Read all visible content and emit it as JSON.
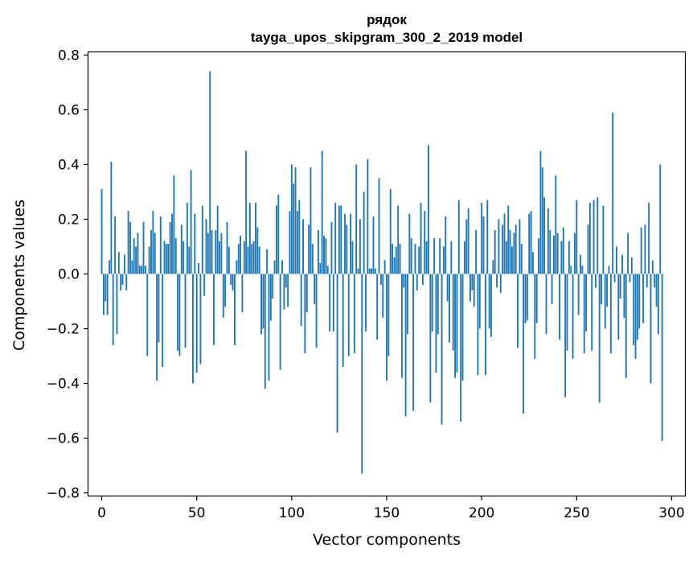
{
  "chart_data": {
    "type": "bar",
    "title_lines": [
      "рядок",
      "tayga_upos_skipgram_300_2_2019 model"
    ],
    "xlabel": "Vector components",
    "ylabel": "Components values",
    "xlim": [
      -7,
      307
    ],
    "ylim": [
      -0.81,
      0.81
    ],
    "xticks": [
      0,
      50,
      100,
      150,
      200,
      250,
      300
    ],
    "xtick_labels": [
      "0",
      "50",
      "100",
      "150",
      "200",
      "250",
      "300"
    ],
    "yticks": [
      -0.8,
      -0.6,
      -0.4,
      -0.2,
      0.0,
      0.2,
      0.4,
      0.6,
      0.8
    ],
    "ytick_labels": [
      "−0.8",
      "−0.6",
      "−0.4",
      "−0.2",
      "0.0",
      "0.2",
      "0.4",
      "0.6",
      "0.8"
    ],
    "bar_color": "#1f77b4",
    "values": [
      0.31,
      -0.15,
      -0.1,
      -0.15,
      0.05,
      0.41,
      -0.26,
      0.21,
      -0.22,
      0.08,
      -0.06,
      -0.04,
      0.07,
      -0.06,
      0.23,
      0.19,
      0.05,
      0.13,
      0.1,
      0.15,
      0.03,
      0.03,
      0.19,
      0.03,
      -0.3,
      0.1,
      0.16,
      0.23,
      0.15,
      -0.39,
      -0.25,
      0.21,
      -0.34,
      0.12,
      0.11,
      0.11,
      0.19,
      0.22,
      0.36,
      0.13,
      -0.28,
      -0.3,
      0.18,
      0.12,
      -0.27,
      0.26,
      0.1,
      0.38,
      -0.4,
      0.22,
      -0.36,
      0.04,
      -0.33,
      0.25,
      -0.08,
      0.2,
      0.15,
      0.74,
      0.16,
      -0.26,
      0.16,
      0.25,
      0.12,
      0.15,
      -0.16,
      -0.12,
      0.19,
      0.1,
      -0.04,
      -0.06,
      -0.26,
      0.05,
      0.11,
      0.14,
      -0.14,
      0.12,
      0.45,
      0.1,
      0.26,
      0.11,
      0.12,
      0.26,
      0.17,
      0.1,
      -0.22,
      -0.2,
      -0.42,
      0.09,
      -0.39,
      -0.17,
      -0.09,
      0.05,
      0.25,
      0.29,
      -0.35,
      0.05,
      -0.13,
      -0.05,
      -0.12,
      0.23,
      0.4,
      0.33,
      0.39,
      0.23,
      0.27,
      -0.19,
      0.2,
      -0.29,
      -0.14,
      0.18,
      0.39,
      0.11,
      -0.11,
      -0.27,
      0.16,
      0.04,
      0.45,
      0.14,
      0.13,
      0.03,
      -0.21,
      0.19,
      -0.21,
      0.26,
      -0.58,
      0.25,
      0.25,
      -0.34,
      0.22,
      0.18,
      -0.3,
      0.22,
      0.12,
      -0.29,
      0.4,
      0.02,
      0.2,
      -0.73,
      0.3,
      -0.21,
      0.42,
      0.02,
      0.02,
      0.21,
      0.02,
      -0.24,
      0.35,
      -0.04,
      -0.16,
      0.05,
      -0.39,
      -0.3,
      0.31,
      0.11,
      0.06,
      0.1,
      0.25,
      0.11,
      -0.38,
      -0.05,
      -0.52,
      -0.22,
      0.22,
      0.13,
      -0.5,
      0.11,
      -0.06,
      0.1,
      0.26,
      -0.04,
      0.23,
      0.12,
      0.47,
      -0.47,
      -0.21,
      0.13,
      -0.36,
      -0.22,
      0.13,
      -0.55,
      0.1,
      0.21,
      -0.1,
      -0.25,
      0.12,
      -0.28,
      -0.38,
      -0.36,
      0.27,
      -0.54,
      -0.39,
      0.12,
      0.2,
      0.24,
      -0.1,
      -0.06,
      -0.12,
      0.16,
      -0.37,
      -0.2,
      0.26,
      0.21,
      -0.37,
      0.27,
      -0.2,
      -0.23,
      0.05,
      0.16,
      -0.05,
      0.2,
      -0.07,
      0.18,
      0.22,
      0.12,
      0.25,
      0.16,
      0.1,
      0.15,
      0.18,
      -0.27,
      0.2,
      0.11,
      -0.51,
      -0.18,
      -0.17,
      0.22,
      0.23,
      0.08,
      -0.31,
      -0.18,
      0.13,
      0.45,
      0.39,
      0.28,
      -0.22,
      0.24,
      0.16,
      -0.11,
      0.14,
      0.36,
      0.15,
      -0.24,
      0.12,
      0.17,
      -0.45,
      -0.28,
      0.12,
      0.03,
      -0.31,
      0.15,
      0.27,
      -0.15,
      0.07,
      0.03,
      -0.29,
      -0.21,
      0.18,
      0.26,
      -0.28,
      0.27,
      -0.05,
      0.28,
      -0.47,
      -0.11,
      0.25,
      -0.2,
      -0.12,
      0.03,
      -0.29,
      0.59,
      -0.03,
      0.1,
      -0.24,
      -0.09,
      0.07,
      -0.16,
      -0.38,
      0.15,
      -0.03,
      0.06,
      -0.26,
      -0.31,
      -0.24,
      -0.2,
      0.17,
      -0.18,
      0.18,
      -0.05,
      0.26,
      -0.4,
      0.05,
      -0.05,
      -0.12,
      -0.22,
      0.4,
      -0.61,
      0.0
    ]
  }
}
